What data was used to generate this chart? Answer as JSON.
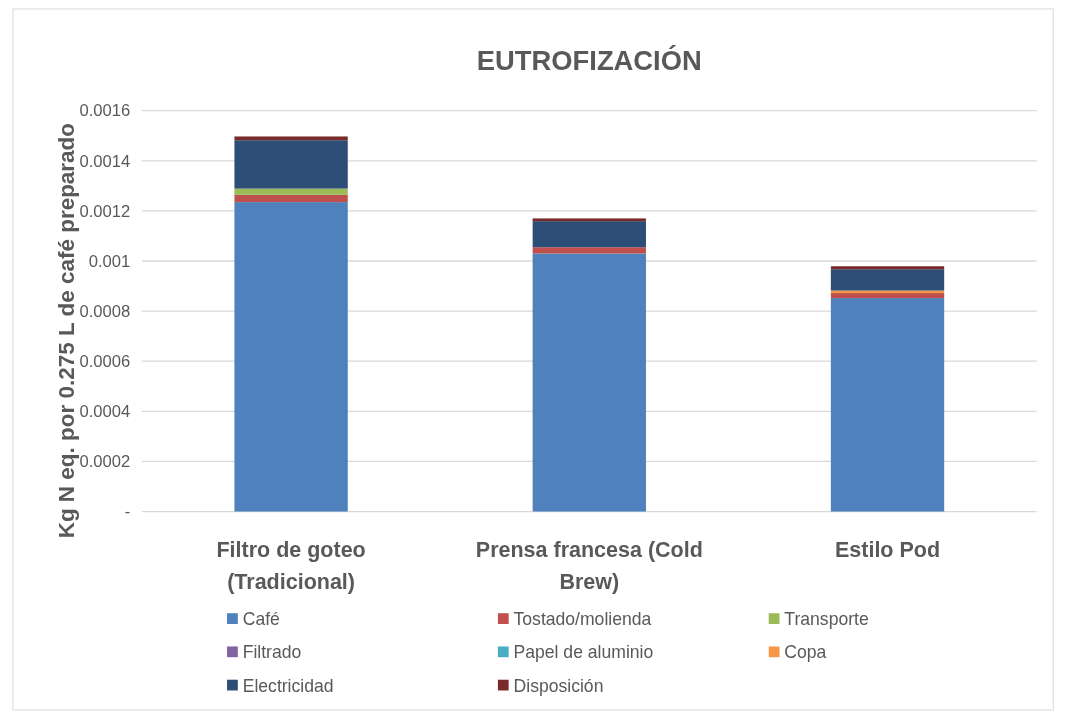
{
  "chart_data": {
    "type": "bar",
    "title": "EUTROFIZACIÓN",
    "ylabel": "Kg N eq. por 0.275 L de café preparado",
    "stacked": true,
    "categories": [
      "Filtro de goteo (Tradicional)",
      "Prensa francesa (Cold Brew)",
      "Estilo Pod"
    ],
    "series": [
      {
        "name": "Café",
        "color": "#4f81bd",
        "values": [
          0.001235,
          0.00103,
          0.000852
        ]
      },
      {
        "name": "Tostado/molienda",
        "color": "#c0504d",
        "values": [
          2.9e-05,
          2.5e-05,
          2e-05
        ]
      },
      {
        "name": "Transporte",
        "color": "#9bbb59",
        "values": [
          2.5e-05,
          0,
          0
        ]
      },
      {
        "name": "Filtrado",
        "color": "#8064a2",
        "values": [
          0,
          0,
          0
        ]
      },
      {
        "name": "Papel de aluminio",
        "color": "#4bacc6",
        "values": [
          0,
          0,
          0
        ]
      },
      {
        "name": "Copa",
        "color": "#f79646",
        "values": [
          0,
          0,
          1e-05
        ]
      },
      {
        "name": "Electricidad",
        "color": "#2c4d75",
        "values": [
          0.000193,
          0.000104,
          8.5e-05
        ]
      },
      {
        "name": "Disposición",
        "color": "#772c2a",
        "values": [
          1.5e-05,
          1.1e-05,
          1.2e-05
        ]
      }
    ],
    "ylim": [
      0,
      0.0016
    ],
    "yticks": [
      {
        "value": 0,
        "label": "-"
      },
      0.0002,
      0.0004,
      0.0006,
      0.0008,
      0.001,
      0.0012,
      0.0014,
      0.0016
    ],
    "grid": "y",
    "legend": "bottom"
  }
}
